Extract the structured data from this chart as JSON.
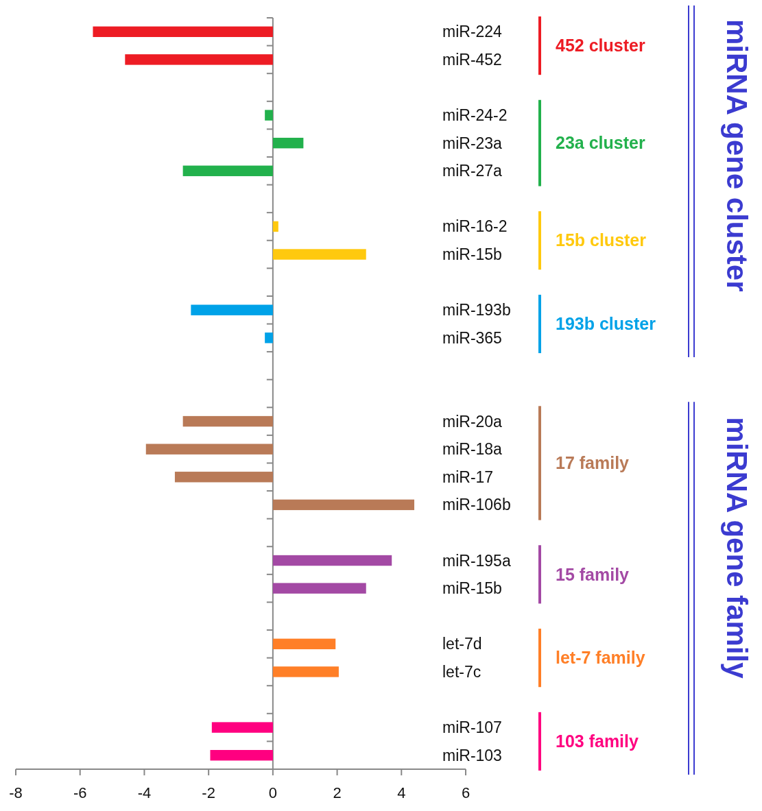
{
  "chart_data": {
    "type": "bar",
    "orientation": "horizontal",
    "categories": [
      "miR-224",
      "miR-452",
      null,
      "miR-24-2",
      "miR-23a",
      "miR-27a",
      null,
      "miR-16-2",
      "miR-15b",
      null,
      "miR-193b",
      "miR-365",
      null,
      null,
      "miR-20a",
      "miR-18a",
      "miR-17",
      "miR-106b",
      null,
      "miR-195a",
      "miR-15b",
      null,
      "let-7d",
      "let-7c",
      null,
      "miR-107",
      "miR-103"
    ],
    "series": [
      {
        "name": "452 cluster",
        "color": "#ed1c24",
        "values": [
          -5.6,
          -4.6,
          null,
          null,
          null,
          null,
          null,
          null,
          null,
          null,
          null,
          null,
          null,
          null,
          null,
          null,
          null,
          null,
          null,
          null,
          null,
          null,
          null,
          null,
          null,
          null,
          null
        ]
      },
      {
        "name": "23a cluster",
        "color": "#22b14c",
        "values": [
          null,
          null,
          null,
          -0.25,
          0.95,
          -2.8,
          null,
          null,
          null,
          null,
          null,
          null,
          null,
          null,
          null,
          null,
          null,
          null,
          null,
          null,
          null,
          null,
          null,
          null,
          null,
          null,
          null
        ]
      },
      {
        "name": "15b cluster",
        "color": "#ffc90e",
        "values": [
          null,
          null,
          null,
          null,
          null,
          null,
          null,
          0.17,
          2.9,
          null,
          null,
          null,
          null,
          null,
          null,
          null,
          null,
          null,
          null,
          null,
          null,
          null,
          null,
          null,
          null,
          null,
          null
        ]
      },
      {
        "name": "193b cluster",
        "color": "#00a2e8",
        "values": [
          null,
          null,
          null,
          null,
          null,
          null,
          null,
          null,
          null,
          null,
          -2.55,
          -0.25,
          null,
          null,
          null,
          null,
          null,
          null,
          null,
          null,
          null,
          null,
          null,
          null,
          null,
          null,
          null
        ]
      },
      {
        "name": "17 family",
        "color": "#b97a57",
        "values": [
          null,
          null,
          null,
          null,
          null,
          null,
          null,
          null,
          null,
          null,
          null,
          null,
          null,
          null,
          -2.8,
          -3.95,
          -3.05,
          4.4,
          null,
          null,
          null,
          null,
          null,
          null,
          null,
          null,
          null
        ]
      },
      {
        "name": "15 family",
        "color": "#a349a4",
        "values": [
          null,
          null,
          null,
          null,
          null,
          null,
          null,
          null,
          null,
          null,
          null,
          null,
          null,
          null,
          null,
          null,
          null,
          null,
          null,
          3.7,
          2.9,
          null,
          null,
          null,
          null,
          null,
          null
        ]
      },
      {
        "name": "let-7 family",
        "color": "#ff7f27",
        "values": [
          null,
          null,
          null,
          null,
          null,
          null,
          null,
          null,
          null,
          null,
          null,
          null,
          null,
          null,
          null,
          null,
          null,
          null,
          null,
          null,
          null,
          null,
          1.95,
          2.05,
          null,
          null,
          null
        ]
      },
      {
        "name": "103 family",
        "color": "#ff0080",
        "values": [
          null,
          null,
          null,
          null,
          null,
          null,
          null,
          null,
          null,
          null,
          null,
          null,
          null,
          null,
          null,
          null,
          null,
          null,
          null,
          null,
          null,
          null,
          null,
          null,
          null,
          -1.9,
          -1.95
        ]
      }
    ],
    "xlim": [
      -8,
      6
    ],
    "xticks": [
      -8,
      -6,
      -4,
      -2,
      0,
      2,
      4,
      6
    ],
    "annotations": [
      "miRNA gene cluster",
      "miRNA gene family"
    ]
  }
}
